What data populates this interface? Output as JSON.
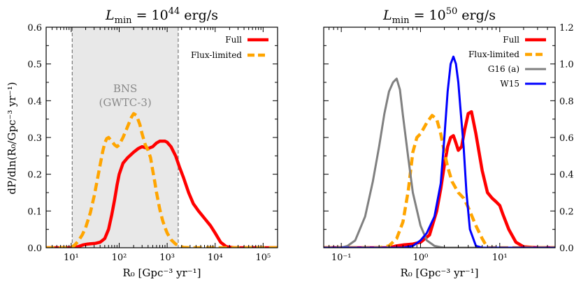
{
  "figure": {
    "ylabel": "dP/dln(R₀/Gpc⁻³ yr⁻¹)"
  },
  "colors": {
    "full": "#ff0000",
    "flux_limited": "#ffa500",
    "g16": "#808080",
    "w15": "#0000ff",
    "band_fill": "#e8e8e8",
    "band_edge": "#777777"
  },
  "chart_data": [
    {
      "type": "line",
      "panel": "left",
      "title": "L_min = 10^44 erg/s",
      "title_parts": {
        "base": "L",
        "sub": "min",
        "eq": " = 10",
        "sup": "44",
        "unit": " erg/s"
      },
      "xscale": "log",
      "xlim": [
        3,
        200000
      ],
      "ylim": [
        0,
        0.6
      ],
      "x_ticks": [
        {
          "value": 10,
          "label": "10¹"
        },
        {
          "value": 100,
          "label": "10²"
        },
        {
          "value": 1000,
          "label": "10³"
        },
        {
          "value": 10000,
          "label": "10⁴"
        },
        {
          "value": 100000,
          "label": "10⁵"
        }
      ],
      "y_ticks": [
        {
          "value": 0,
          "label": "0.0"
        },
        {
          "value": 0.1,
          "label": "0.1"
        },
        {
          "value": 0.2,
          "label": "0.2"
        },
        {
          "value": 0.3,
          "label": "0.3"
        },
        {
          "value": 0.4,
          "label": "0.4"
        },
        {
          "value": 0.5,
          "label": "0.5"
        },
        {
          "value": 0.6,
          "label": "0.6"
        }
      ],
      "y_axis_side": "left",
      "xlabel": "R₀ [Gpc⁻³ yr⁻¹]",
      "band": {
        "x0": 10.5,
        "x1": 1700,
        "label_line1": "BNS",
        "label_line2": "(GWTC-3)"
      },
      "legend": {
        "placement": "top-right",
        "entries": [
          {
            "label": "Full",
            "series": "Full"
          },
          {
            "label": "Flux-limited",
            "series": "Flux-limited"
          }
        ]
      },
      "series": [
        {
          "name": "Full",
          "color": "#ff0000",
          "style": "solid",
          "x": [
            3,
            10,
            14,
            18,
            22,
            26,
            32,
            40,
            50,
            60,
            70,
            80,
            90,
            100,
            120,
            150,
            200,
            250,
            300,
            400,
            500,
            600,
            700,
            800,
            900,
            1000,
            1200,
            1500,
            1800,
            2200,
            2800,
            3500,
            4500,
            6000,
            8000,
            10000,
            13000,
            17000,
            25000,
            40000,
            100000,
            200000
          ],
          "y": [
            0.0,
            0.0,
            0.003,
            0.008,
            0.01,
            0.011,
            0.012,
            0.015,
            0.025,
            0.05,
            0.09,
            0.13,
            0.17,
            0.2,
            0.23,
            0.245,
            0.26,
            0.27,
            0.275,
            0.27,
            0.275,
            0.285,
            0.29,
            0.29,
            0.29,
            0.287,
            0.275,
            0.25,
            0.22,
            0.19,
            0.15,
            0.12,
            0.1,
            0.08,
            0.06,
            0.04,
            0.015,
            0.003,
            0.0,
            0.0,
            0.0,
            0.0
          ]
        },
        {
          "name": "Flux-limited",
          "color": "#ffa500",
          "style": "dashed",
          "x": [
            3,
            10,
            12,
            14,
            17,
            20,
            25,
            30,
            35,
            40,
            45,
            50,
            55,
            60,
            70,
            80,
            90,
            100,
            120,
            150,
            180,
            200,
            230,
            270,
            300,
            350,
            400,
            450,
            500,
            550,
            600,
            700,
            800,
            900,
            1000,
            1200,
            1500,
            1800,
            2200,
            3000,
            5000,
            200000
          ],
          "y": [
            0.0,
            0.0,
            0.008,
            0.018,
            0.035,
            0.055,
            0.095,
            0.14,
            0.185,
            0.225,
            0.26,
            0.285,
            0.297,
            0.3,
            0.29,
            0.28,
            0.275,
            0.28,
            0.3,
            0.33,
            0.355,
            0.365,
            0.36,
            0.335,
            0.31,
            0.28,
            0.265,
            0.245,
            0.21,
            0.18,
            0.15,
            0.105,
            0.075,
            0.055,
            0.04,
            0.022,
            0.01,
            0.004,
            0.001,
            0.0,
            0.0,
            0.0
          ]
        }
      ]
    },
    {
      "type": "line",
      "panel": "right",
      "title": "L_min = 10^50 erg/s",
      "title_parts": {
        "base": "L",
        "sub": "min",
        "eq": " = 10",
        "sup": "50",
        "unit": " erg/s"
      },
      "xscale": "log",
      "xlim": [
        0.06,
        50
      ],
      "ylim": [
        0,
        1.2
      ],
      "x_ticks": [
        {
          "value": 0.1,
          "label": "10⁻¹"
        },
        {
          "value": 1,
          "label": "10⁰"
        },
        {
          "value": 10,
          "label": "10¹"
        }
      ],
      "y_ticks": [
        {
          "value": 0,
          "label": "0.0"
        },
        {
          "value": 0.2,
          "label": "0.2"
        },
        {
          "value": 0.4,
          "label": "0.4"
        },
        {
          "value": 0.6,
          "label": "0.6"
        },
        {
          "value": 0.8,
          "label": "0.8"
        },
        {
          "value": 1.0,
          "label": "1.0"
        },
        {
          "value": 1.2,
          "label": "1.2"
        }
      ],
      "y_axis_side": "right",
      "xlabel": "R₀ [Gpc⁻³ yr⁻¹]",
      "legend": {
        "placement": "top-right",
        "entries": [
          {
            "label": "Full",
            "series": "Full"
          },
          {
            "label": "Flux-limited",
            "series": "Flux-limited"
          },
          {
            "label": "G16 (a)",
            "series": "G16 (a)"
          },
          {
            "label": "W15",
            "series": "W15"
          }
        ]
      },
      "series": [
        {
          "name": "Full",
          "color": "#ff0000",
          "style": "solid",
          "x": [
            0.06,
            0.4,
            0.5,
            0.6,
            0.8,
            1.0,
            1.3,
            1.6,
            1.8,
            2.0,
            2.2,
            2.4,
            2.6,
            2.8,
            3.0,
            3.3,
            3.6,
            4.0,
            4.4,
            5.0,
            6.0,
            7.0,
            8.0,
            9.0,
            10.0,
            11.0,
            13.0,
            16.0,
            20.0,
            30.0,
            50.0
          ],
          "y": [
            0.0,
            0.0,
            0.01,
            0.015,
            0.02,
            0.03,
            0.07,
            0.2,
            0.32,
            0.45,
            0.55,
            0.6,
            0.61,
            0.57,
            0.53,
            0.55,
            0.64,
            0.73,
            0.74,
            0.62,
            0.42,
            0.3,
            0.27,
            0.25,
            0.23,
            0.18,
            0.1,
            0.03,
            0.005,
            0.0,
            0.0
          ]
        },
        {
          "name": "Flux-limited",
          "color": "#ffa500",
          "style": "dashed",
          "x": [
            0.06,
            0.3,
            0.4,
            0.5,
            0.6,
            0.7,
            0.8,
            0.9,
            1.0,
            1.2,
            1.4,
            1.6,
            1.8,
            2.0,
            2.2,
            2.5,
            3.0,
            3.5,
            4.0,
            5.0,
            6.0,
            7.0,
            50.0
          ],
          "y": [
            0.0,
            0.0,
            0.01,
            0.05,
            0.14,
            0.31,
            0.52,
            0.6,
            0.62,
            0.68,
            0.72,
            0.7,
            0.62,
            0.52,
            0.44,
            0.36,
            0.3,
            0.27,
            0.22,
            0.12,
            0.05,
            0.0,
            0.0
          ]
        },
        {
          "name": "G16 (a)",
          "color": "#808080",
          "style": "solid",
          "x": [
            0.06,
            0.1,
            0.12,
            0.15,
            0.2,
            0.25,
            0.3,
            0.35,
            0.4,
            0.45,
            0.5,
            0.55,
            0.6,
            0.7,
            0.8,
            1.0,
            1.2,
            1.5,
            1.8,
            2.0,
            50.0
          ],
          "y": [
            0.0,
            0.0,
            0.01,
            0.04,
            0.17,
            0.36,
            0.55,
            0.73,
            0.85,
            0.9,
            0.92,
            0.86,
            0.72,
            0.49,
            0.3,
            0.12,
            0.04,
            0.01,
            0.003,
            0.0,
            0.0
          ]
        },
        {
          "name": "W15",
          "color": "#0000ff",
          "style": "solid",
          "x": [
            0.06,
            0.6,
            0.8,
            1.0,
            1.2,
            1.5,
            1.8,
            2.0,
            2.2,
            2.4,
            2.6,
            2.8,
            3.0,
            3.2,
            3.5,
            3.8,
            4.2,
            5.0,
            6.0,
            50.0
          ],
          "y": [
            0.0,
            0.0,
            0.01,
            0.04,
            0.08,
            0.17,
            0.35,
            0.6,
            0.85,
            1.0,
            1.04,
            1.0,
            0.9,
            0.75,
            0.55,
            0.3,
            0.1,
            0.01,
            0.0,
            0.0
          ]
        }
      ]
    }
  ]
}
